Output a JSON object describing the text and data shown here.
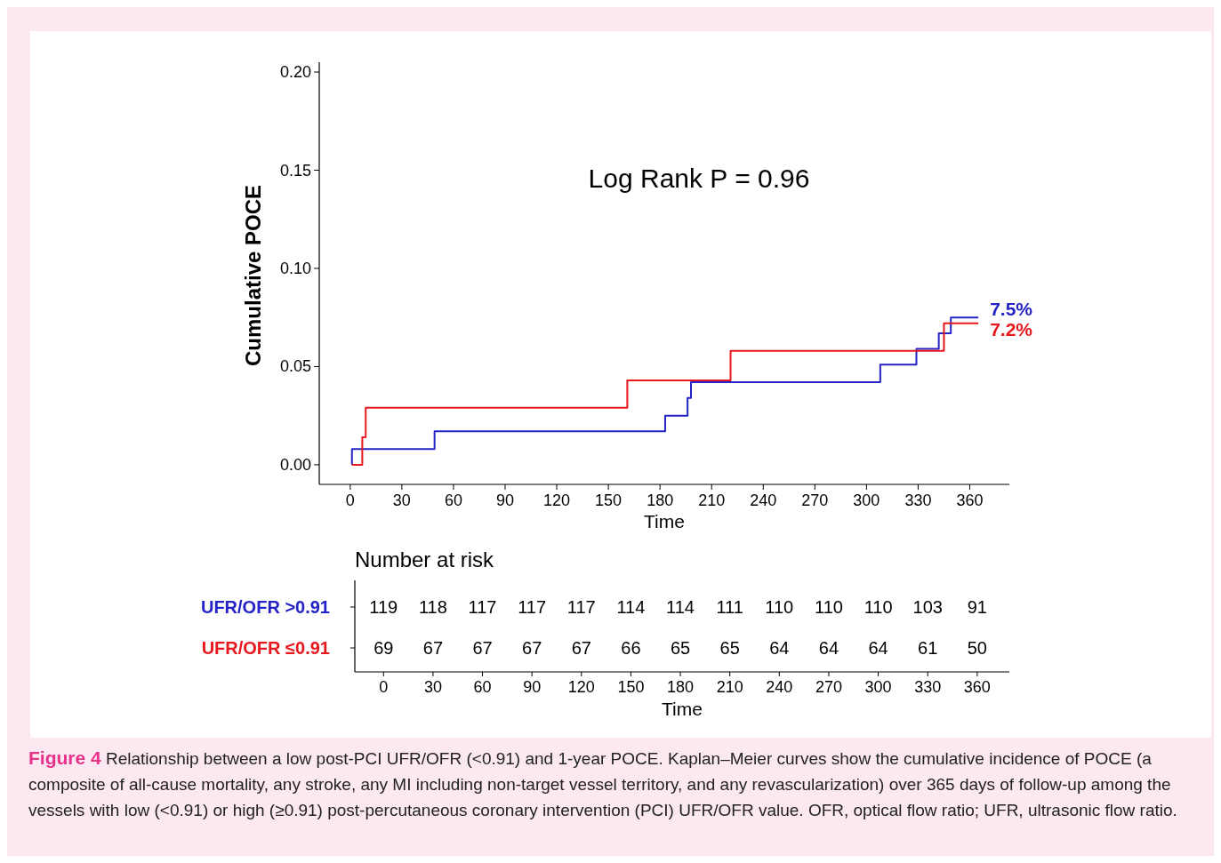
{
  "chart_data": [
    {
      "type": "step",
      "ylabel": "Cumulative POCE",
      "xlabel": "Time",
      "xlim": [
        -18,
        383
      ],
      "xticks": [
        0,
        30,
        60,
        90,
        120,
        150,
        180,
        210,
        240,
        270,
        300,
        330,
        360
      ],
      "ylim": [
        -0.01,
        0.205
      ],
      "yticks": [
        {
          "value": 0,
          "label": "0.00"
        },
        {
          "value": 0.05,
          "label": "0.05"
        },
        {
          "value": 0.1,
          "label": "0.10"
        },
        {
          "value": 0.15,
          "label": "0.15"
        },
        {
          "value": 0.2,
          "label": "0.20"
        }
      ],
      "series": [
        {
          "color": "#2323c8",
          "x": [
            1,
            1,
            49,
            183,
            196,
            198,
            308,
            329,
            342,
            349,
            365
          ],
          "values": [
            0,
            0.008,
            0.017,
            0.025,
            0.034,
            0.042,
            0.051,
            0.059,
            0.067,
            0.075,
            0.075
          ]
        },
        {
          "color": "#e8171d",
          "x": [
            1,
            7,
            9,
            161,
            221,
            345,
            365
          ],
          "values": [
            0,
            0.014,
            0.029,
            0.043,
            0.058,
            0.072,
            0.072
          ]
        }
      ],
      "annotations": [
        "Log Rank P = 0.96",
        {
          "text": "7.5%",
          "x": 365,
          "y": 0.075
        },
        {
          "text": "7.2%",
          "x": 365,
          "y": 0.072
        },
        "Figure 4 Relationship between a low post-PCI UFR/OFR (<0.91) and 1-year POCE. Kaplan–Meier curves show the cumulative incidence of POCE (a composite of all-cause mortality, any stroke, any MI including non-target vessel territory, and any revascularization) over 365 days of follow-up among the vessels with low (<0.91) or high (≥0.91) post-percutaneous coronary intervention (PCI) UFR/OFR value. OFR, optical flow ratio; UFR, ultrasonic flow ratio."
      ]
    },
    {
      "type": "heatmap",
      "title": "Number at risk",
      "xlabel": "Time",
      "categories": [
        "0",
        "30",
        "60",
        "90",
        "120",
        "150",
        "180",
        "210",
        "240",
        "270",
        "300",
        "330",
        "360"
      ],
      "y_categories": [
        "UFR/OFR >0.91",
        "UFR/OFR ≤0.91"
      ],
      "colors": [
        "#2323c8",
        "#e8171d"
      ],
      "cells": [
        [
          119,
          118,
          117,
          117,
          117,
          114,
          114,
          111,
          110,
          110,
          110,
          103,
          91
        ],
        [
          69,
          67,
          67,
          67,
          67,
          66,
          65,
          65,
          64,
          64,
          64,
          61,
          50
        ]
      ],
      "data_labels": true
    }
  ]
}
